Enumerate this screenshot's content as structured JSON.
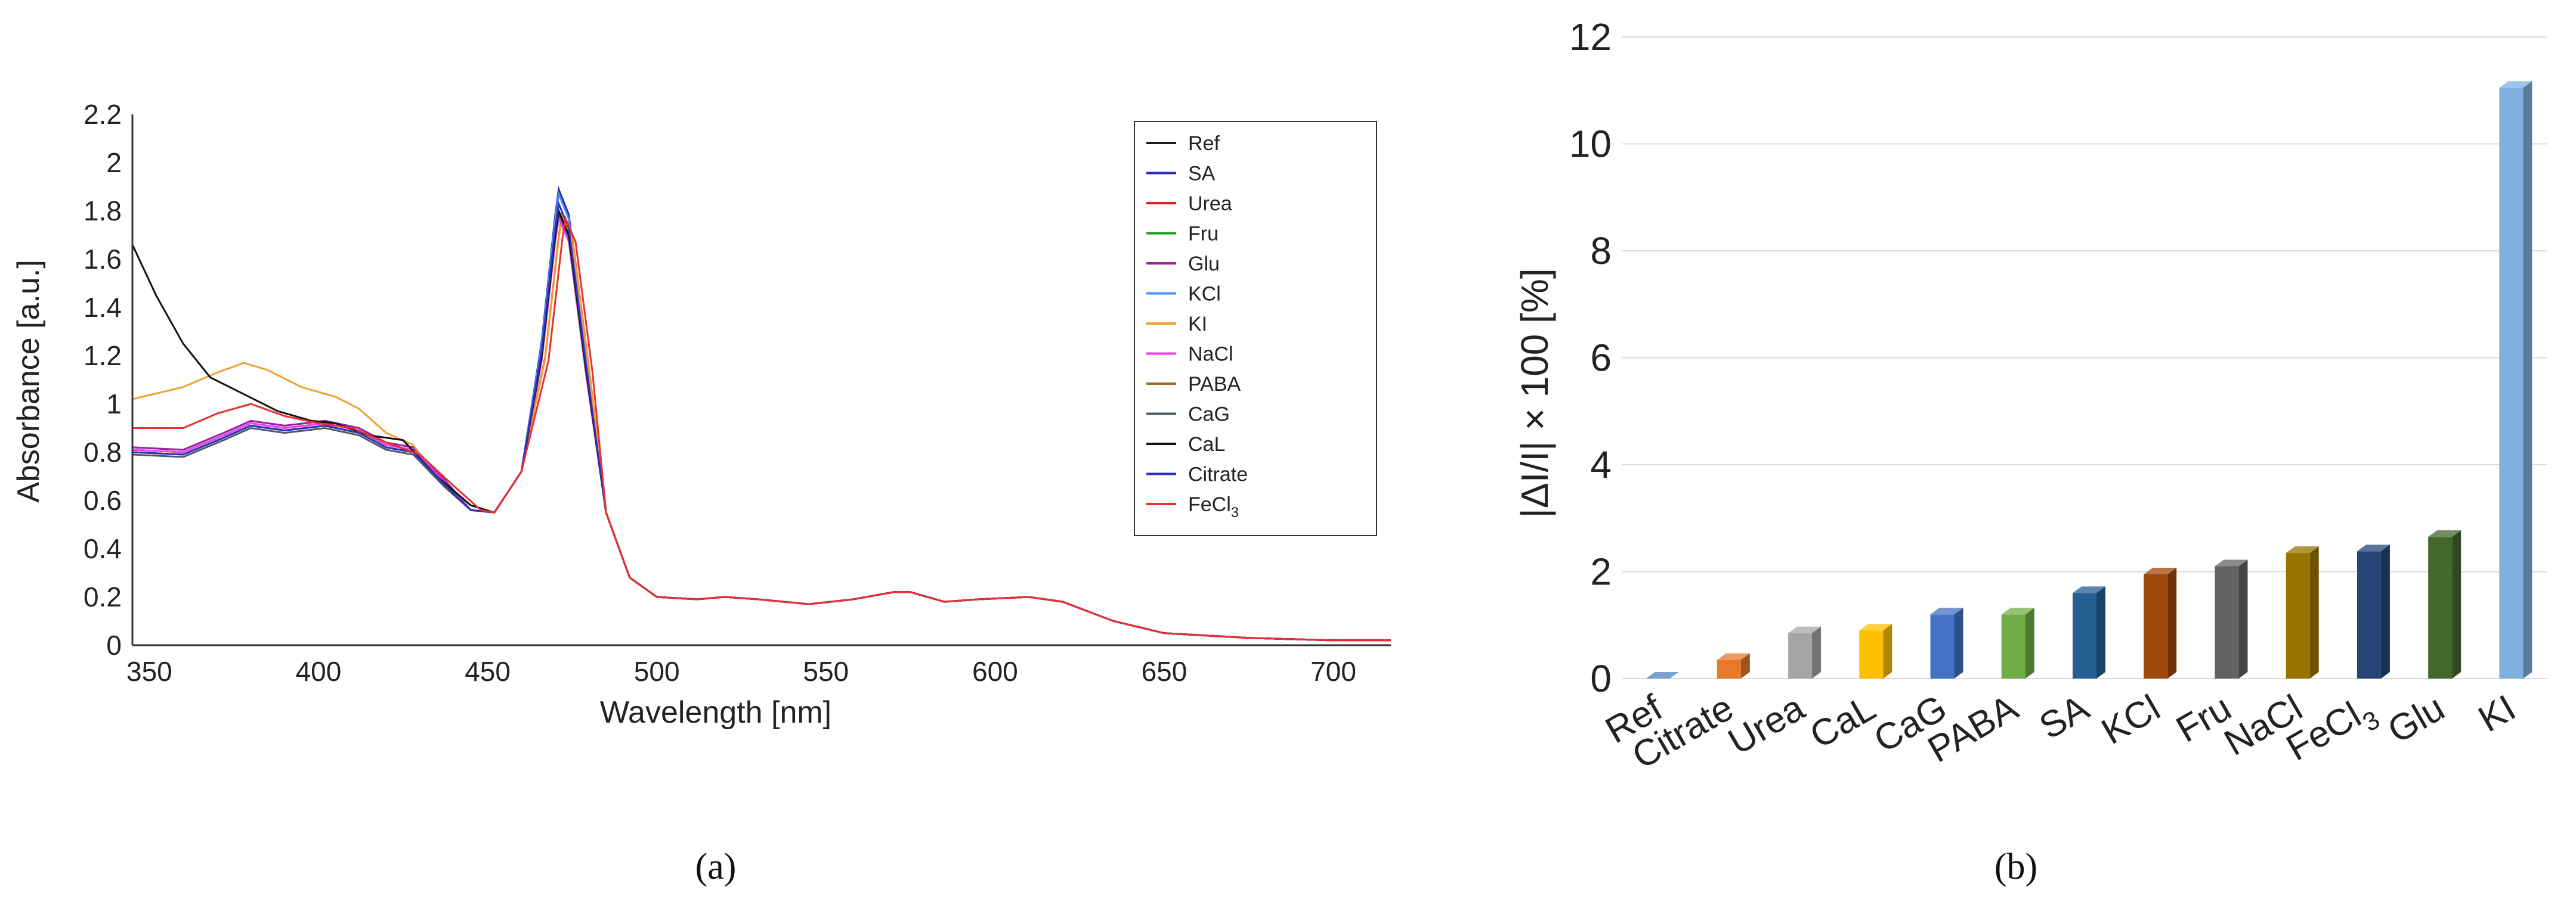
{
  "panel_labels": {
    "a": "(a)",
    "b": "(b)"
  },
  "chart_data": [
    {
      "type": "line",
      "xlabel": "Wavelength [nm]",
      "ylabel": "Absorbance [a.u.]",
      "xlim": [
        345,
        717
      ],
      "ylim": [
        0,
        2.2
      ],
      "xticks": [
        350,
        400,
        450,
        500,
        550,
        600,
        650,
        700
      ],
      "yticks": [
        0,
        0.2,
        0.4,
        0.6,
        0.8,
        1,
        1.2,
        1.4,
        1.6,
        1.8,
        2,
        2.2
      ],
      "ytick_labels": [
        "0",
        "0.2",
        "0.4",
        "0.6",
        "0.8",
        "1",
        "1.2",
        "1.4",
        "1.6",
        "1.8",
        "2",
        "2.2"
      ],
      "grid": false,
      "legend_position": "top-right",
      "series": [
        {
          "name": "Ref",
          "color": "#1a1a1a",
          "base": 0.8,
          "peak": 1.8,
          "shift": 0
        },
        {
          "name": "SA",
          "color": "#2b2bb8",
          "base": 0.82,
          "peak": 1.89,
          "shift": 0
        },
        {
          "name": "Urea",
          "color": "#e02020",
          "base": 0.81,
          "peak": 1.79,
          "shift": 1
        },
        {
          "name": "Fru",
          "color": "#1a9a1a",
          "base": 0.8,
          "peak": 1.78,
          "shift": 0
        },
        {
          "name": "Glu",
          "color": "#a020a0",
          "base": 0.82,
          "peak": 1.79,
          "shift": 0
        },
        {
          "name": "KCl",
          "color": "#4a90f0",
          "base": 0.81,
          "peak": 1.87,
          "shift": 0
        },
        {
          "name": "KI",
          "color": "#f0a030",
          "base": 0.81,
          "peak": 1.78,
          "shift": 1,
          "points": [
            [
              345,
              1.02
            ],
            [
              360,
              1.07
            ],
            [
              370,
              1.13
            ],
            [
              378,
              1.17
            ],
            [
              385,
              1.14
            ],
            [
              395,
              1.07
            ],
            [
              405,
              1.03
            ],
            [
              412,
              0.98
            ],
            [
              420,
              0.88
            ],
            [
              428,
              0.83
            ],
            [
              435,
              0.7
            ],
            [
              445,
              0.58
            ]
          ]
        },
        {
          "name": "NaCl",
          "color": "#f040f0",
          "base": 0.81,
          "peak": 1.77,
          "shift": 0
        },
        {
          "name": "PABA",
          "color": "#9a6a2a",
          "base": 0.8,
          "peak": 1.79,
          "shift": 0
        },
        {
          "name": "CaG",
          "color": "#4a5a6a",
          "base": 0.79,
          "peak": 1.79,
          "shift": 0
        },
        {
          "name": "CaL",
          "color": "#111111",
          "base": 0.8,
          "peak": 1.8,
          "shift": 0,
          "points": [
            [
              345,
              1.66
            ],
            [
              352,
              1.45
            ],
            [
              360,
              1.25
            ],
            [
              368,
              1.11
            ],
            [
              378,
              1.04
            ],
            [
              388,
              0.97
            ],
            [
              398,
              0.93
            ],
            [
              405,
              0.92
            ],
            [
              415,
              0.87
            ],
            [
              425,
              0.85
            ],
            [
              435,
              0.7
            ],
            [
              445,
              0.58
            ]
          ]
        },
        {
          "name": "Citrate",
          "color": "#3030c0",
          "base": 0.8,
          "peak": 1.83,
          "shift": 0
        },
        {
          "name": "FeCl3",
          "color": "#e83030",
          "base": 0.8,
          "peak": 1.77,
          "shift": 2,
          "points": [
            [
              345,
              0.9
            ],
            [
              360,
              0.9
            ],
            [
              370,
              0.96
            ],
            [
              380,
              1.0
            ],
            [
              390,
              0.95
            ],
            [
              400,
              0.92
            ],
            [
              410,
              0.9
            ],
            [
              420,
              0.84
            ],
            [
              430,
              0.79
            ],
            [
              440,
              0.66
            ],
            [
              448,
              0.56
            ]
          ]
        }
      ]
    },
    {
      "type": "bar",
      "ylabel": "|ΔI/I| × 100 [%]",
      "ylim": [
        0,
        12
      ],
      "yticks": [
        0,
        2,
        4,
        6,
        8,
        10,
        12
      ],
      "ytick_labels": [
        "0",
        "2",
        "4",
        "6",
        "8",
        "10",
        "12"
      ],
      "grid": true,
      "categories": [
        "Ref",
        "Citrate",
        "Urea",
        "CaL",
        "CaG",
        "PABA",
        "SA",
        "KCl",
        "Fru",
        "NaCl",
        "FeCl3",
        "Glu",
        "KI"
      ],
      "values": [
        0.0,
        0.35,
        0.85,
        0.9,
        1.2,
        1.2,
        1.6,
        1.95,
        2.1,
        2.35,
        2.38,
        2.65,
        11.05
      ],
      "colors": [
        "#4f81bd",
        "#e8782a",
        "#a5a5a5",
        "#ffc000",
        "#4472c4",
        "#70ad47",
        "#255e91",
        "#9e480e",
        "#636363",
        "#997300",
        "#264478",
        "#43682b",
        "#7fb0e0"
      ]
    }
  ]
}
